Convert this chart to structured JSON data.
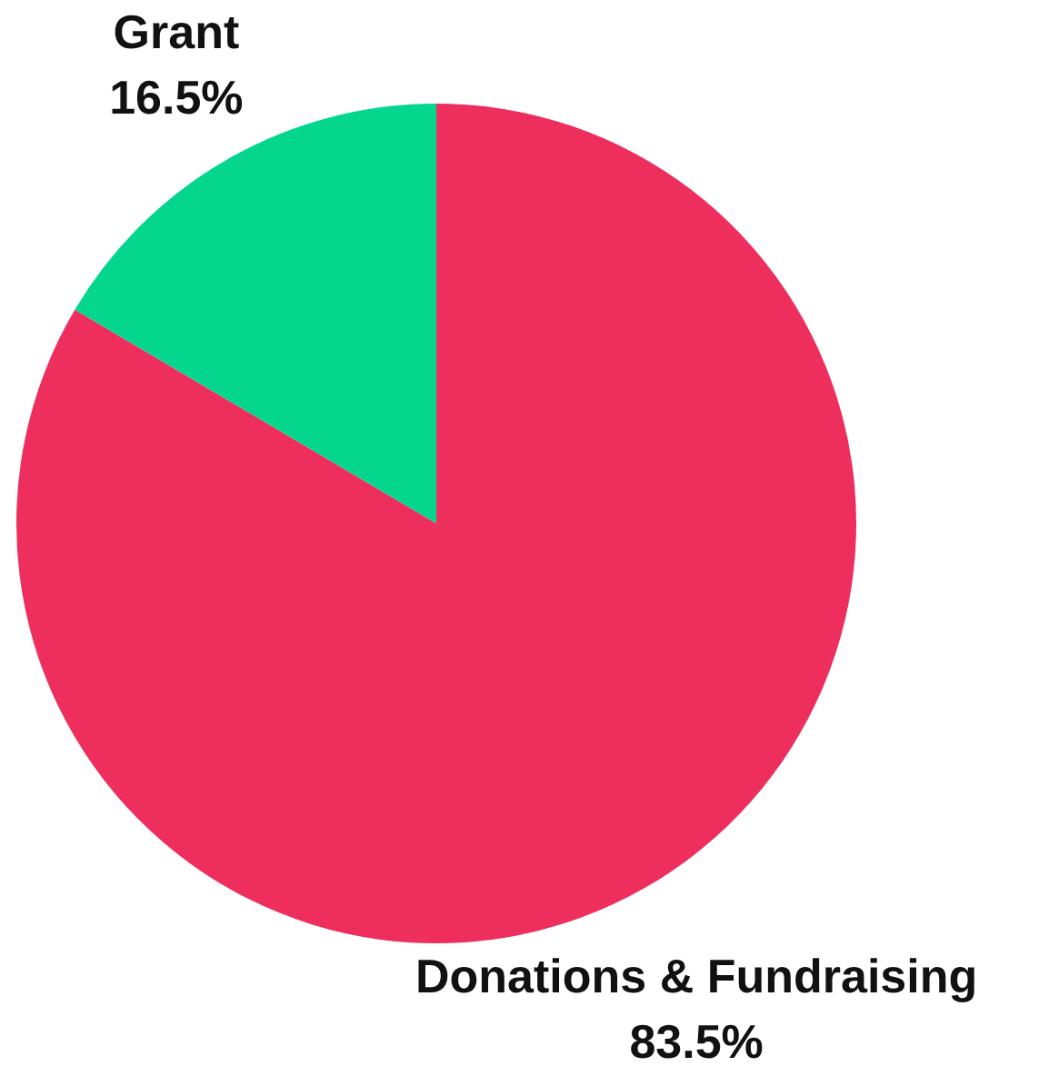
{
  "chart_data": {
    "type": "pie",
    "categories": [
      "Donations & Fundraising",
      "Grant"
    ],
    "values": [
      83.5,
      16.5
    ],
    "colors": [
      "#ee2e5d",
      "#05d68e"
    ],
    "value_labels": [
      "83.5%",
      "16.5%"
    ],
    "legend": false
  }
}
